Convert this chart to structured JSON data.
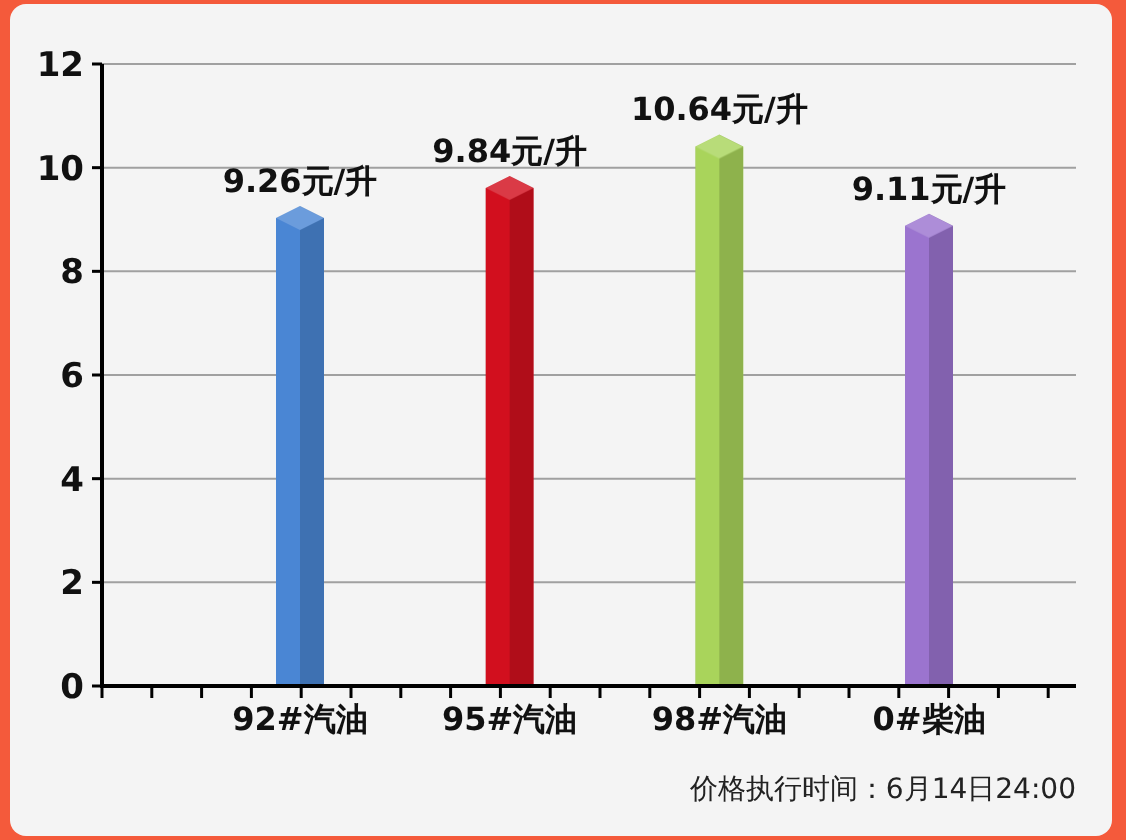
{
  "chart_data": {
    "type": "bar",
    "categories": [
      "92#汽油",
      "95#汽油",
      "98#汽油",
      "0#柴油"
    ],
    "values": [
      9.26,
      9.84,
      10.64,
      9.11
    ],
    "colors": [
      "#4a86d4",
      "#d20f1e",
      "#a9d45b",
      "#9b74cf"
    ],
    "value_labels": [
      "9.26元/升",
      "9.84元/升",
      "10.64元/升",
      "9.11元/升"
    ],
    "ylim": [
      0,
      12
    ],
    "yticks": [
      0,
      2,
      4,
      6,
      8,
      10,
      12
    ],
    "grid": "y",
    "annotations": [
      "价格执行时间：6月14日24:00"
    ]
  }
}
